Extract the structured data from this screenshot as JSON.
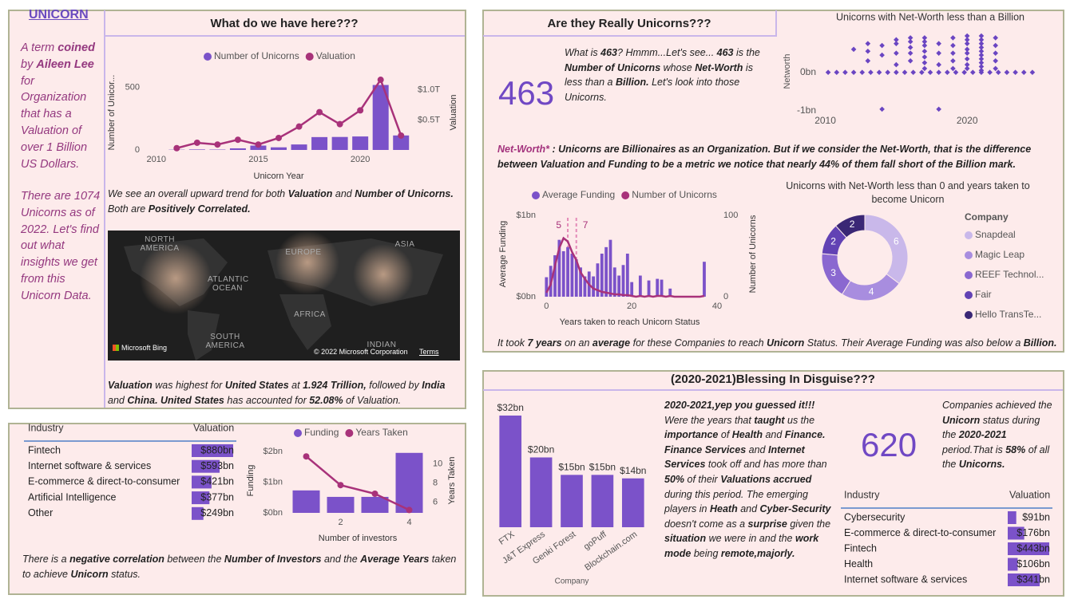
{
  "panels": {
    "overview": {
      "brand": "UNICORN",
      "title": "What do we have here???",
      "intro": [
        {
          "text": "A term "
        },
        {
          "text": "coined",
          "bold": true
        },
        {
          "text": " by "
        },
        {
          "text": "Aileen Lee",
          "bold": true
        },
        {
          "text": " for Organization that has a Valuation of over 1 Billion US Dollars."
        }
      ],
      "intro_more": [
        {
          "text": "There are 1074 Unicorns as of 2022. Let's find out what insights we get from this Unicorn Data."
        }
      ],
      "trend_note": [
        {
          "text": "We see an overall upward trend for both "
        },
        {
          "text": "Valuation",
          "bold": true
        },
        {
          "text": " and "
        },
        {
          "text": "Number of Unicorns.",
          "bold": true
        },
        {
          "text": " Both are "
        },
        {
          "text": "Positively Correlated.",
          "bold": true
        }
      ],
      "map_note": [
        {
          "text": "Valuation",
          "bold": true
        },
        {
          "text": " was highest for "
        },
        {
          "text": "United States",
          "bold": true
        },
        {
          "text": " at "
        },
        {
          "text": "1.924 Trillion,",
          "bold": true
        },
        {
          "text": " followed by "
        },
        {
          "text": "India",
          "bold": true
        },
        {
          "text": " and "
        },
        {
          "text": "China.  United States",
          "bold": true
        },
        {
          "text": " has accounted for "
        },
        {
          "text": "52.08%",
          "bold": true
        },
        {
          "text": " of Valuation."
        }
      ]
    },
    "investors": {
      "note": [
        {
          "text": "There is a "
        },
        {
          "text": "negative correlation",
          "bold": true
        },
        {
          "text": " between the "
        },
        {
          "text": "Number of Investors",
          "bold": true
        },
        {
          "text": " and the "
        },
        {
          "text": "Average Years",
          "bold": true
        },
        {
          "text": " taken to achieve "
        },
        {
          "text": "Unicorn",
          "bold": true
        },
        {
          "text": " status."
        }
      ]
    },
    "net_worth": {
      "title": "Are they Really Unicorns???",
      "count": 463,
      "count_note": [
        {
          "text": "What is "
        },
        {
          "text": "463",
          "bold": true
        },
        {
          "text": "? Hmmm...Let's see... "
        },
        {
          "text": "463",
          "bold": true
        },
        {
          "text": " is the "
        },
        {
          "text": "Number of Unicorns",
          "bold": true
        },
        {
          "text": " whose "
        },
        {
          "text": "Net-Worth",
          "bold": true
        },
        {
          "text": " is less than a "
        },
        {
          "text": "Billion.",
          "bold": true
        },
        {
          "text": " Let's look into those Unicorns."
        }
      ],
      "definition": [
        {
          "text": "Net-Worth*",
          "bold": true,
          "color": "#a3327d"
        },
        {
          "text": " : Unicorns are Billionaires as an Organization. But if we consider the Net-Worth, that is the difference between Valuation and Funding to be a metric we notice that nearly 44% of them fall short of the Billion mark.",
          "bold": true
        }
      ],
      "years_note": [
        {
          "text": "It took "
        },
        {
          "text": "7 years",
          "bold": true
        },
        {
          "text": " on an "
        },
        {
          "text": "average",
          "bold": true
        },
        {
          "text": " for these Companies to reach "
        },
        {
          "text": "Unicorn",
          "bold": true
        },
        {
          "text": " Status. Their Average Funding was also below a "
        },
        {
          "text": "Billion.",
          "bold": true
        }
      ]
    },
    "blessing": {
      "title": "(2020-2021)Blessing In Disguise???",
      "count": 620,
      "story": [
        {
          "text": "2020-2021,yep you guessed it!!!",
          "bold": true
        },
        {
          "text": " Were the years that "
        },
        {
          "text": "taught",
          "bold": true
        },
        {
          "text": " us the "
        },
        {
          "text": "importance",
          "bold": true
        },
        {
          "text": " of "
        },
        {
          "text": "Health",
          "bold": true
        },
        {
          "text": " and "
        },
        {
          "text": "Finance. ",
          "bold": true
        },
        {
          "text": "Finance Services",
          "bold": true
        },
        {
          "text": " and "
        },
        {
          "text": "Internet Services",
          "bold": true
        },
        {
          "text": " took off and has more than "
        },
        {
          "text": "50%",
          "bold": true
        },
        {
          "text": " of their "
        },
        {
          "text": "Valuations accrued",
          "bold": true
        },
        {
          "text": " during this period. The emerging players in "
        },
        {
          "text": "Heath",
          "bold": true
        },
        {
          "text": " and "
        },
        {
          "text": "Cyber-Security",
          "bold": true
        },
        {
          "text": " doesn't come as a "
        },
        {
          "text": "surprise",
          "bold": true
        },
        {
          "text": " given the "
        },
        {
          "text": "situation",
          "bold": true
        },
        {
          "text": " we were in and the "
        },
        {
          "text": "work mode",
          "bold": true
        },
        {
          "text": " being "
        },
        {
          "text": "remote,majorly.",
          "bold": true
        }
      ],
      "count_note": [
        {
          "text": "Companies achieved the "
        },
        {
          "text": "Unicorn",
          "bold": true
        },
        {
          "text": " status during the "
        },
        {
          "text": "2020-2021",
          "bold": true
        },
        {
          "text": " period.That is "
        },
        {
          "text": "58%",
          "bold": true
        },
        {
          "text": " of all the "
        },
        {
          "text": "Unicorns.",
          "bold": true
        }
      ]
    }
  },
  "map": {
    "labels": [
      "NORTH AMERICA",
      "EUROPE",
      "ASIA",
      "Atlantic Ocean",
      "AFRICA",
      "SOUTH AMERICA",
      "Indian"
    ],
    "provider": "Microsoft Bing",
    "copyright": "© 2022 Microsoft Corporation",
    "terms": "Terms"
  },
  "chart_data": [
    {
      "type": "combo",
      "xlabel": "Unicorn Year",
      "ylabel": "Number of Unicor...",
      "y2label": "Valuation",
      "x": [
        2011,
        2012,
        2013,
        2014,
        2015,
        2016,
        2017,
        2018,
        2019,
        2020,
        2021,
        2022
      ],
      "xlim": [
        2009.5,
        2022.5
      ],
      "xticks": [
        2010,
        2015,
        2020
      ],
      "ylim": [
        0,
        600
      ],
      "yticks": [
        0,
        500
      ],
      "y2lim": [
        0,
        1.25
      ],
      "y2ticks": [
        {
          "value": 0.5,
          "label": "$0.5T"
        },
        {
          "value": 1.0,
          "label": "$1.0T"
        }
      ],
      "series": [
        {
          "name": "Number of Unicorns",
          "type": "bar",
          "color": "#7b52c9",
          "values": [
            2,
            4,
            3,
            13,
            35,
            21,
            44,
            103,
            104,
            108,
            520,
            116
          ]
        },
        {
          "name": "Valuation",
          "type": "line",
          "axis": "y2",
          "color": "#a8327a",
          "values": [
            0.03,
            0.12,
            0.09,
            0.17,
            0.09,
            0.2,
            0.39,
            0.63,
            0.43,
            0.66,
            1.17,
            0.24
          ]
        }
      ]
    },
    {
      "type": "table_bar",
      "columns": [
        "Industry",
        "Valuation"
      ],
      "categories": [
        "Fintech",
        "Internet software & services",
        "E-commerce & direct-to-consumer",
        "Artificial Intelligence",
        "Other"
      ],
      "values": [
        880,
        593,
        421,
        377,
        249
      ],
      "value_labels": [
        "$880bn",
        "$593bn",
        "$421bn",
        "$377bn",
        "$249bn"
      ],
      "xlim": [
        0,
        880
      ],
      "color": "#7b52c9"
    },
    {
      "type": "combo",
      "xlabel": "Number of investors",
      "ylabel": "Funding",
      "y2label": "Years Taken",
      "x": [
        1,
        2,
        3,
        4
      ],
      "xlim": [
        0.5,
        4.5
      ],
      "xticks": [
        2,
        4
      ],
      "ylim": [
        0,
        2.1
      ],
      "yticks": [
        {
          "value": 0,
          "label": "$0bn"
        },
        {
          "value": 1,
          "label": "$1bn"
        },
        {
          "value": 2,
          "label": "$2bn"
        }
      ],
      "y2lim": [
        4.9,
        11.65
      ],
      "y2ticks": [
        6,
        8,
        10
      ],
      "series": [
        {
          "name": "Funding",
          "type": "bar",
          "color": "#7b52c9",
          "values": [
            0.73,
            0.52,
            0.52,
            1.95
          ]
        },
        {
          "name": "Years Taken",
          "type": "line",
          "axis": "y2",
          "color": "#a8327a",
          "values": [
            10.8,
            7.8,
            6.9,
            5.2
          ]
        }
      ]
    },
    {
      "type": "scatter",
      "title": "Unicorns with Net-Worth less than a Billion",
      "ylabel": "Networth",
      "color": "#6a45c2",
      "xlim": [
        2009.8,
        2025
      ],
      "xticks": [
        2010,
        2020
      ],
      "ylim": [
        -1.15,
        1.2
      ],
      "yticks": [
        {
          "value": 0,
          "label": "0bn"
        },
        {
          "value": -1,
          "label": "-1bn"
        }
      ],
      "x": [
        2010.2,
        2010.8,
        2011.4,
        2012.0,
        2012.6,
        2013.2,
        2013.8,
        2014.4,
        2015.0,
        2015.6,
        2016.2,
        2016.8,
        2017.4,
        2018.0,
        2018.6,
        2019.2,
        2019.8,
        2020.4,
        2021.0,
        2021.6,
        2022.2,
        2022.8,
        2023.4,
        2024.0,
        2024.6,
        2012,
        2013,
        2013,
        2013,
        2014,
        2014,
        2014,
        2015,
        2015,
        2015,
        2015,
        2016,
        2016,
        2016,
        2016,
        2016,
        2017,
        2017,
        2017,
        2017,
        2017,
        2017,
        2017,
        2018,
        2018,
        2018,
        2018,
        2019,
        2019,
        2019,
        2019,
        2019,
        2020,
        2020,
        2020,
        2020,
        2020,
        2020,
        2020,
        2020,
        2021,
        2021,
        2021,
        2021,
        2021,
        2021,
        2021,
        2021,
        2021,
        2021,
        2022,
        2022,
        2022,
        2022,
        2022
      ],
      "values": [
        0,
        0,
        0,
        0,
        0,
        0,
        0,
        0,
        0,
        0,
        0,
        0,
        0,
        0,
        0,
        0,
        0,
        0,
        0,
        0,
        0,
        0,
        0,
        0,
        0,
        0.6,
        0.3,
        0.55,
        0.75,
        0.45,
        0.7,
        -0.96,
        0.2,
        0.5,
        0.75,
        0.85,
        0.3,
        0.5,
        0.65,
        0.8,
        0.9,
        0.1,
        0.25,
        0.4,
        0.55,
        0.7,
        0.8,
        0.9,
        0.2,
        0.5,
        0.75,
        -0.96,
        0.1,
        0.3,
        0.5,
        0.7,
        0.9,
        0.1,
        0.2,
        0.35,
        0.5,
        0.6,
        0.75,
        0.85,
        0.95,
        0.05,
        0.15,
        0.25,
        0.35,
        0.45,
        0.55,
        0.65,
        0.75,
        0.85,
        0.95,
        0.1,
        0.3,
        0.5,
        0.7,
        0.9
      ]
    },
    {
      "type": "combo",
      "xlabel": "Years taken to reach Unicorn Status",
      "ylabel": "Average Funding",
      "y2label": "Number of Unicorns",
      "x": [
        0,
        1,
        2,
        3,
        4,
        5,
        6,
        7,
        8,
        9,
        10,
        11,
        12,
        13,
        14,
        15,
        16,
        17,
        18,
        19,
        20,
        21,
        22,
        23,
        24,
        25,
        26,
        27,
        28,
        29,
        30,
        31,
        32,
        33,
        34,
        35,
        36,
        37
      ],
      "xlim": [
        -1,
        40
      ],
      "xticks": [
        0,
        20,
        40
      ],
      "ylim": [
        0,
        1.05
      ],
      "yticks": [
        {
          "value": 0,
          "label": "$0bn"
        },
        {
          "value": 1,
          "label": "$1bn"
        }
      ],
      "y2lim": [
        0,
        105
      ],
      "y2ticks": [
        0,
        100
      ],
      "reflines": [
        5,
        7
      ],
      "series": [
        {
          "name": "Average Funding",
          "type": "bar",
          "color": "#7b52c9",
          "values": [
            0.24,
            0.38,
            0.51,
            0.7,
            0.56,
            0.61,
            0.53,
            0.46,
            0.36,
            0.25,
            0.31,
            0.25,
            0.41,
            0.53,
            0.61,
            0.7,
            0.36,
            0.26,
            0.39,
            0.53,
            0.18,
            null,
            0.26,
            null,
            0.2,
            null,
            0.22,
            0.21,
            null,
            0.1,
            null,
            null,
            null,
            null,
            null,
            null,
            null,
            0.43
          ]
        },
        {
          "name": "Number of Unicorns",
          "type": "line",
          "axis": "y2",
          "color": "#a8327a",
          "values": [
            5,
            15,
            38,
            60,
            72,
            68,
            55,
            45,
            30,
            22,
            15,
            10,
            8,
            6,
            5,
            4,
            3,
            3,
            2,
            2,
            1,
            0,
            1,
            0,
            1,
            0,
            1,
            1,
            0,
            1,
            0,
            0,
            0,
            0,
            0,
            0,
            0,
            1
          ]
        }
      ]
    },
    {
      "type": "donut",
      "title": "Unicorns with Net-Worth less than 0 and years taken to become Unicorn",
      "legend_title": "Company",
      "categories": [
        "Snapdeal",
        "Magic Leap",
        "REEF Technol...",
        "Fair",
        "Hello TransTe..."
      ],
      "values": [
        6,
        4,
        3,
        2,
        2
      ],
      "colors": [
        "#c9b8ea",
        "#a88ddf",
        "#8a68d0",
        "#6242b4",
        "#3a2775"
      ]
    },
    {
      "type": "bar",
      "xlabel": "Company",
      "categories": [
        "FTX",
        "J&T Express",
        "Genki Forest",
        "goPuff",
        "Blockchain.com"
      ],
      "values": [
        32,
        20,
        15,
        15,
        14
      ],
      "value_labels": [
        "$32bn",
        "$20bn",
        "$15bn",
        "$15bn",
        "$14bn"
      ],
      "ylim": [
        0,
        32
      ],
      "color": "#7b52c9"
    },
    {
      "type": "table_bar",
      "columns": [
        "Industry",
        "Valuation"
      ],
      "categories": [
        "Cybersecurity",
        "E-commerce & direct-to-consumer",
        "Fintech",
        "Health",
        "Internet software & services"
      ],
      "values": [
        91,
        176,
        443,
        106,
        341
      ],
      "value_labels": [
        "$91bn",
        "$176bn",
        "$443bn",
        "$106bn",
        "$341bn"
      ],
      "xlim": [
        0,
        443
      ],
      "color": "#7b52c9"
    }
  ]
}
